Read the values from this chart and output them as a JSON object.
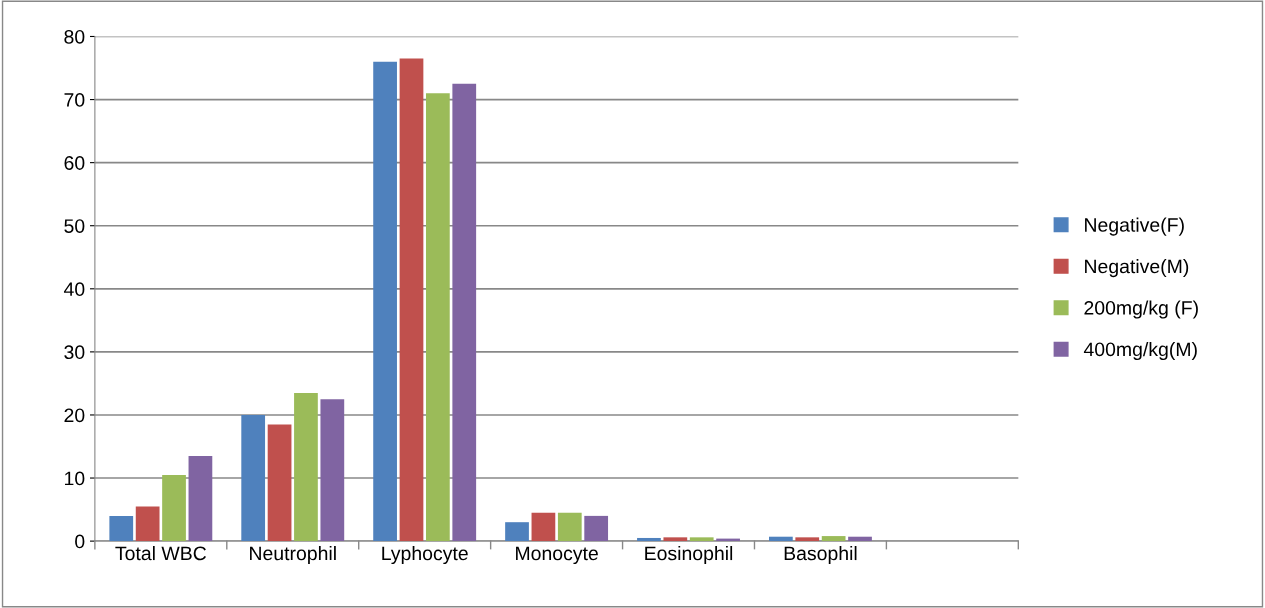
{
  "chart_data": {
    "type": "bar",
    "categories": [
      "Total WBC",
      "Neutrophil",
      "Lyphocyte",
      "Monocyte",
      "Eosinophil",
      "Basophil",
      null
    ],
    "series": [
      {
        "name": "Negative(F)",
        "color": "#4f81bd",
        "values": [
          4,
          20,
          76,
          3,
          0.5,
          0.7,
          null
        ]
      },
      {
        "name": "Negative(M)",
        "color": "#c0504d",
        "values": [
          5.5,
          18.5,
          76.5,
          4.5,
          0.6,
          0.6,
          null
        ]
      },
      {
        "name": "200mg/kg (F)",
        "color": "#9bbb59",
        "values": [
          10.5,
          23.5,
          71,
          4.5,
          0.6,
          0.8,
          null
        ]
      },
      {
        "name": "400mg/kg(M)",
        "color": "#8064a2",
        "values": [
          13.5,
          22.5,
          72.5,
          4,
          0.4,
          0.7,
          null
        ]
      }
    ],
    "ylim": [
      0,
      80
    ],
    "yticks": [
      0,
      10,
      20,
      30,
      40,
      50,
      60,
      70,
      80
    ],
    "grid": "y",
    "legend": "right"
  }
}
